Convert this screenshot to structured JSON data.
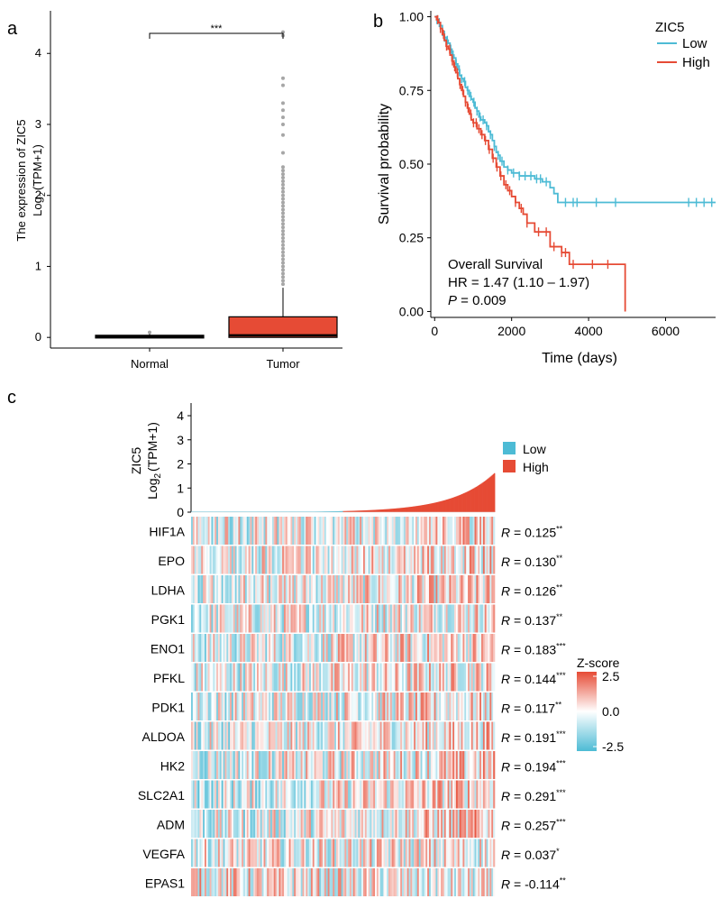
{
  "panels": {
    "a": "a",
    "b": "b",
    "c": "c"
  },
  "chart_data": [
    {
      "id": "a",
      "type": "box",
      "categories": [
        "Normal",
        "Tumor"
      ],
      "ylabel_line1": "The expression of ZIC5",
      "ylabel_line2_base": "Log",
      "ylabel_line2_sub": "2",
      "ylabel_line2_rest": "(TPM+1)",
      "ylim": [
        -0.15,
        4.6
      ],
      "yticks": [
        "0",
        "1",
        "2",
        "3",
        "4"
      ],
      "significance": "***",
      "boxes": [
        {
          "name": "Normal",
          "q1": 0.0,
          "median": 0.01,
          "q3": 0.03,
          "whisker_low": 0.0,
          "whisker_high": 0.05,
          "outliers": [
            0.07
          ],
          "color": "#E64B35"
        },
        {
          "name": "Tumor",
          "q1": 0.0,
          "median": 0.03,
          "q3": 0.29,
          "whisker_low": 0.0,
          "whisker_high": 0.7,
          "outliers": [
            0.75,
            0.8,
            0.85,
            0.9,
            0.95,
            1.0,
            1.05,
            1.1,
            1.15,
            1.2,
            1.25,
            1.3,
            1.35,
            1.4,
            1.45,
            1.5,
            1.55,
            1.6,
            1.65,
            1.7,
            1.75,
            1.8,
            1.85,
            1.9,
            1.95,
            2.0,
            2.05,
            2.1,
            2.15,
            2.2,
            2.25,
            2.3,
            2.35,
            2.4,
            2.6,
            2.85,
            3.0,
            3.1,
            3.2,
            3.3,
            3.55,
            3.65,
            4.25,
            4.3
          ],
          "color": "#E64B35"
        }
      ]
    },
    {
      "id": "b",
      "type": "line",
      "subtype": "kaplan-meier",
      "xlabel": "Time (days)",
      "ylabel": "Survival probability",
      "xlim": [
        -100,
        7300
      ],
      "ylim": [
        -0.02,
        1.02
      ],
      "xticks": [
        "0",
        "2000",
        "4000",
        "6000"
      ],
      "yticks": [
        "0.00",
        "0.25",
        "0.50",
        "0.75",
        "1.00"
      ],
      "legend_title": "ZIC5",
      "annotation_title": "Overall Survival",
      "annotation_hr": "HR = 1.47 (1.10 –  1.97)",
      "annotation_p_label": "P",
      "annotation_p_value": " = 0.009",
      "series": [
        {
          "name": "Low",
          "color": "#4DBBD5",
          "x": [
            0,
            50,
            100,
            150,
            200,
            250,
            300,
            350,
            400,
            450,
            500,
            550,
            600,
            650,
            700,
            750,
            800,
            850,
            900,
            950,
            1000,
            1050,
            1100,
            1150,
            1200,
            1250,
            1300,
            1350,
            1400,
            1450,
            1500,
            1550,
            1600,
            1650,
            1700,
            1800,
            1900,
            2000,
            2100,
            2200,
            2400,
            2600,
            2800,
            3000,
            3100,
            3200,
            7300
          ],
          "y": [
            1.0,
            0.99,
            0.98,
            0.97,
            0.95,
            0.93,
            0.92,
            0.91,
            0.89,
            0.87,
            0.86,
            0.84,
            0.82,
            0.8,
            0.79,
            0.78,
            0.76,
            0.75,
            0.73,
            0.72,
            0.71,
            0.69,
            0.68,
            0.66,
            0.65,
            0.65,
            0.64,
            0.63,
            0.61,
            0.6,
            0.58,
            0.56,
            0.54,
            0.53,
            0.51,
            0.49,
            0.48,
            0.47,
            0.47,
            0.46,
            0.46,
            0.45,
            0.44,
            0.42,
            0.4,
            0.37,
            0.37
          ],
          "censor": [
            60,
            120,
            200,
            260,
            330,
            420,
            480,
            560,
            640,
            700,
            780,
            860,
            940,
            1020,
            1100,
            1180,
            1260,
            1350,
            1450,
            1550,
            1650,
            1750,
            1900,
            2050,
            2200,
            2350,
            2500,
            2650,
            2750,
            2900,
            3400,
            3600,
            3700,
            4200,
            4700,
            6600,
            6800,
            7000,
            7200
          ]
        },
        {
          "name": "High",
          "color": "#E64B35",
          "x": [
            0,
            50,
            100,
            150,
            200,
            250,
            300,
            350,
            400,
            450,
            500,
            550,
            600,
            650,
            700,
            750,
            800,
            850,
            900,
            950,
            1000,
            1100,
            1200,
            1300,
            1400,
            1500,
            1600,
            1700,
            1800,
            1900,
            2000,
            2100,
            2200,
            2300,
            2400,
            2600,
            2800,
            3000,
            3300,
            3500,
            4900,
            4950
          ],
          "y": [
            1.0,
            0.99,
            0.98,
            0.96,
            0.94,
            0.92,
            0.9,
            0.89,
            0.87,
            0.85,
            0.83,
            0.81,
            0.79,
            0.77,
            0.75,
            0.73,
            0.71,
            0.69,
            0.67,
            0.65,
            0.64,
            0.62,
            0.6,
            0.58,
            0.55,
            0.52,
            0.49,
            0.46,
            0.43,
            0.41,
            0.39,
            0.37,
            0.35,
            0.33,
            0.3,
            0.27,
            0.27,
            0.22,
            0.2,
            0.16,
            0.16,
            0.0
          ],
          "censor": [
            80,
            150,
            230,
            310,
            390,
            460,
            520,
            590,
            660,
            730,
            800,
            870,
            940,
            1010,
            1080,
            1150,
            1230,
            1320,
            1420,
            1520,
            1620,
            1720,
            1850,
            1950,
            2100,
            2250,
            2400,
            2700,
            2900,
            3100,
            3300,
            3400,
            3600,
            4100,
            4500
          ]
        }
      ]
    },
    {
      "id": "c",
      "type": "heatmap",
      "top_bar_ylabel_line1": "ZIC5",
      "top_bar_ylabel_line2_base": "Log",
      "top_bar_ylabel_line2_sub": "2",
      "top_bar_ylabel_line2_rest": "(TPM+1)",
      "top_bar_yticks": [
        "0",
        "1",
        "2",
        "3",
        "4"
      ],
      "top_bar_ylim": [
        0,
        4.3
      ],
      "top_bar_legend": [
        {
          "name": "Low",
          "color": "#4DBBD5"
        },
        {
          "name": "High",
          "color": "#E64B35"
        }
      ],
      "zscore_title": "Z-score",
      "zscore_ticks": [
        "2.5",
        "0.0",
        "-2.5"
      ],
      "genes": [
        {
          "gene": "HIF1A",
          "r_label": "R",
          "r_value": " = 0.125",
          "stars": "**",
          "r": 0.125
        },
        {
          "gene": "EPO",
          "r_label": "R",
          "r_value": " = 0.130",
          "stars": "**",
          "r": 0.13
        },
        {
          "gene": "LDHA",
          "r_label": "R",
          "r_value": " = 0.126",
          "stars": "**",
          "r": 0.126
        },
        {
          "gene": "PGK1",
          "r_label": "R",
          "r_value": " = 0.137",
          "stars": "**",
          "r": 0.137
        },
        {
          "gene": "ENO1",
          "r_label": "R",
          "r_value": " = 0.183",
          "stars": "***",
          "r": 0.183
        },
        {
          "gene": "PFKL",
          "r_label": "R",
          "r_value": " = 0.144",
          "stars": "***",
          "r": 0.144
        },
        {
          "gene": "PDK1",
          "r_label": "R",
          "r_value": " = 0.117",
          "stars": "**",
          "r": 0.117
        },
        {
          "gene": "ALDOA",
          "r_label": "R",
          "r_value": " = 0.191",
          "stars": "***",
          "r": 0.191
        },
        {
          "gene": "HK2",
          "r_label": "R",
          "r_value": " = 0.194",
          "stars": "***",
          "r": 0.194
        },
        {
          "gene": "SLC2A1",
          "r_label": "R",
          "r_value": " = 0.291",
          "stars": "***",
          "r": 0.291
        },
        {
          "gene": "ADM",
          "r_label": "R",
          "r_value": " = 0.257",
          "stars": "***",
          "r": 0.257
        },
        {
          "gene": "VEGFA",
          "r_label": "R",
          "r_value": " = 0.037",
          "stars": "*",
          "r": 0.037
        },
        {
          "gene": "EPAS1",
          "r_label": "R",
          "r_value": " = -0.114",
          "stars": "**",
          "r": -0.114
        }
      ]
    }
  ]
}
